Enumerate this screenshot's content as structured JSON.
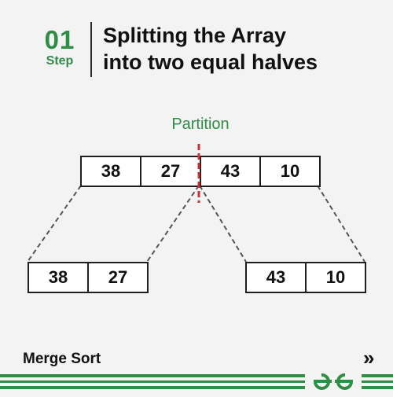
{
  "step": {
    "number": "01",
    "label": "Step"
  },
  "title": {
    "line1": "Splitting the Array",
    "line2": "into two equal halves"
  },
  "partition": {
    "label": "Partition",
    "color": "#d32f2f"
  },
  "array": {
    "main": [
      "38",
      "27",
      "43",
      "10"
    ],
    "left": [
      "38",
      "27"
    ],
    "right": [
      "43",
      "10"
    ]
  },
  "footer": {
    "label": "Merge Sort",
    "next_icon": "double-chevron-right-icon",
    "logo": "gfg-logo"
  },
  "colors": {
    "accent": "#2f8d46",
    "partition_line": "#d32f2f",
    "connector": "#555555",
    "background": "#f3f3f3"
  }
}
